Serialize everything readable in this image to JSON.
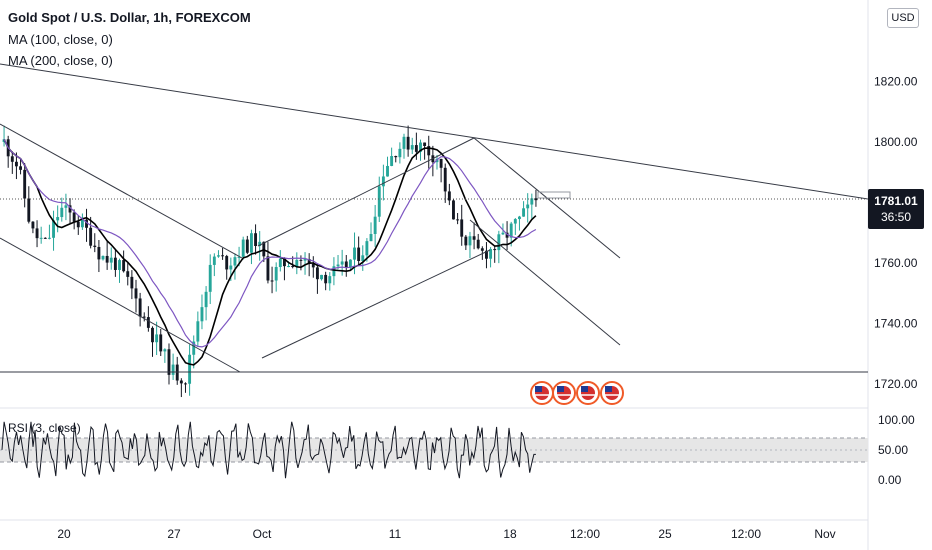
{
  "header": {
    "symbol_title": "Gold Spot / U.S. Dollar, 1h, FOREXCOM",
    "ma100_label": "MA (100, close, 0)",
    "ma200_label": "MA (200, close, 0)",
    "currency": "USD"
  },
  "last_price": {
    "value": "1781.01",
    "countdown": "36:50"
  },
  "rsi_panel": {
    "label": "RSI (3, close)"
  },
  "colors": {
    "candle_up": "#26a69a",
    "candle_down": "#131722",
    "ma100": "#000000",
    "ma200": "#7e57c2",
    "trendline": "#363a45",
    "rsi_band": "#e6e6e6",
    "event_flag": "#f05a28"
  },
  "chart_data": {
    "type": "candlestick",
    "x_tick_labels": [
      "20",
      "27",
      "Oct",
      "11",
      "18",
      "12:00",
      "25",
      "12:00",
      "Nov"
    ],
    "y_tick_labels": [
      "1820.00",
      "1800.00",
      "1760.00",
      "1740.00",
      "1720.00"
    ],
    "y_range": [
      1715,
      1842
    ],
    "grid": false,
    "price_path_approx": [
      1800,
      1792,
      1770,
      1766,
      1778,
      1775,
      1770,
      1762,
      1760,
      1752,
      1742,
      1733,
      1724,
      1722,
      1745,
      1762,
      1760,
      1765,
      1768,
      1755,
      1760,
      1762,
      1758,
      1756,
      1757,
      1762,
      1766,
      1790,
      1798,
      1800,
      1798,
      1795,
      1775,
      1768,
      1763,
      1765,
      1770,
      1775,
      1781
    ],
    "horizontal_support": 1725,
    "rsi": {
      "y_tick_labels": [
        "100.00",
        "50.00",
        "0.00"
      ],
      "band": [
        30,
        70
      ]
    }
  }
}
